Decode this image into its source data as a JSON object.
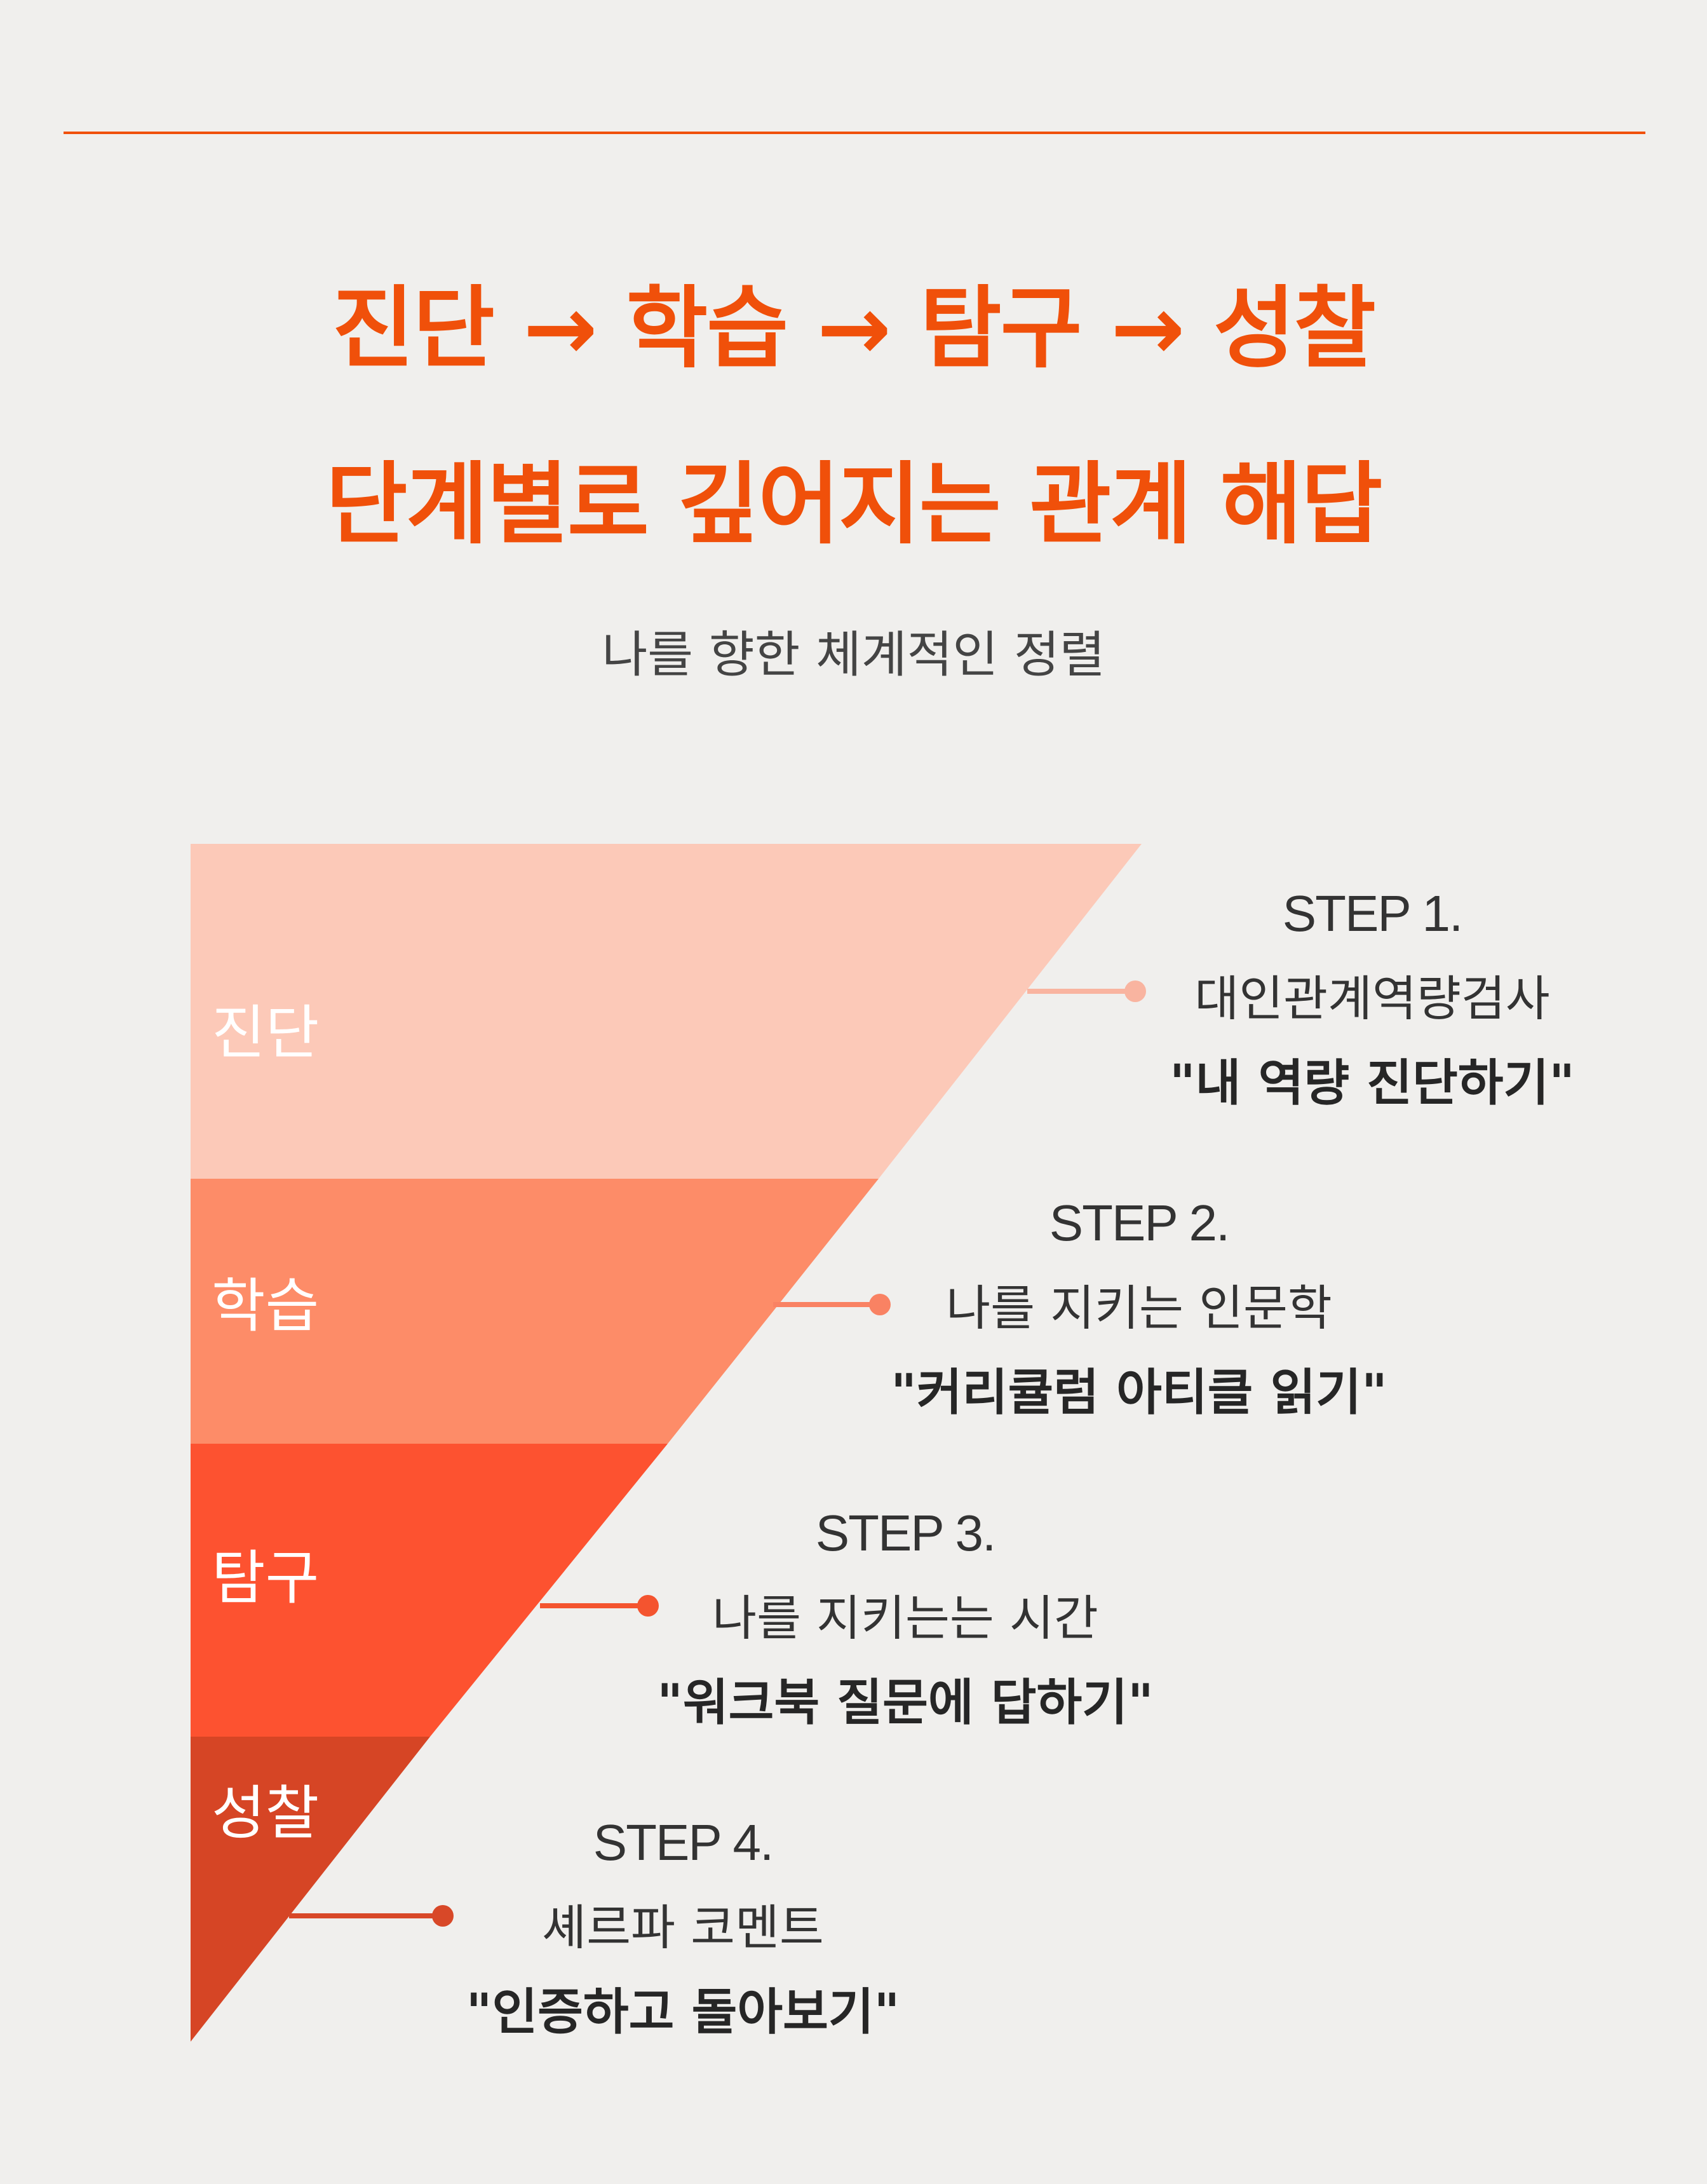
{
  "colors": {
    "accent": "#f0500a",
    "background": "#f0efed",
    "stage_1": "#fcc9b8",
    "stage_2": "#fd8c68",
    "stage_3": "#fd5230",
    "stage_4": "#d64525",
    "connector_1": "#f9b4a0",
    "connector_2": "#f98263",
    "connector_3": "#f4542f",
    "connector_4": "#d84828"
  },
  "header": {
    "title_line_1": "진단 → 학습 → 탐구 → 성찰",
    "title_line_2": "단계별로 깊어지는 관계 해답",
    "subtitle": "나를 향한 체계적인 정렬"
  },
  "stages": [
    {
      "label": "진단",
      "step": "STEP 1.",
      "description": "대인관계역량검사",
      "action": "\"내 역량 진단하기\""
    },
    {
      "label": "학습",
      "step": "STEP 2.",
      "description": "나를 지키는 인문학",
      "action": "\"커리큘럼 아티클 읽기\""
    },
    {
      "label": "탐구",
      "step": "STEP 3.",
      "description": "나를 지키는는 시간",
      "action": "\"워크북 질문에 답하기\""
    },
    {
      "label": "성찰",
      "step": "STEP 4.",
      "description": "셰르파 코멘트",
      "action": "\"인증하고 돌아보기\""
    }
  ]
}
